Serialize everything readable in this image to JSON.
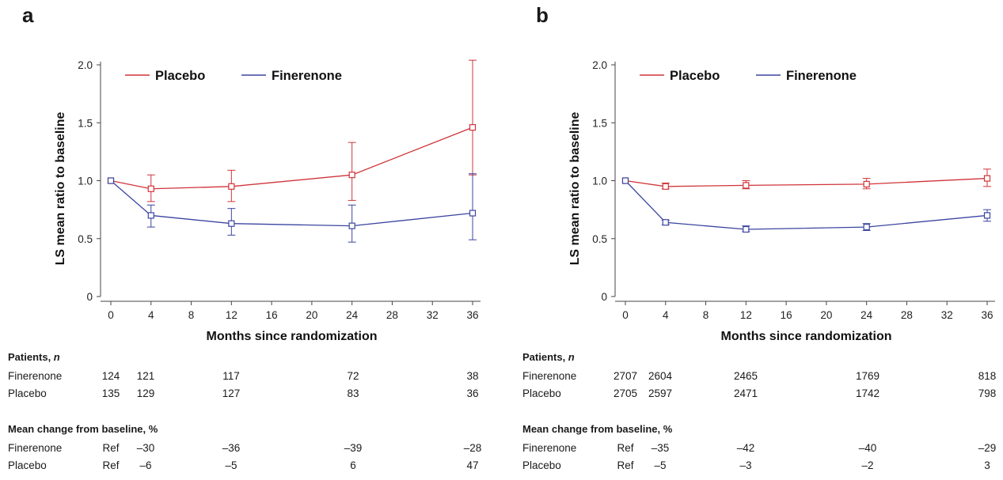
{
  "panels": [
    {
      "letter": "a",
      "chart_data": {
        "type": "line",
        "xlabel": "Months since randomization",
        "ylabel": "LS mean ratio to baseline",
        "xlim": [
          0,
          36
        ],
        "ylim": [
          0,
          2.0
        ],
        "xticks": [
          0,
          4,
          8,
          12,
          16,
          20,
          24,
          28,
          32,
          36
        ],
        "yticks": [
          0,
          0.5,
          1.0,
          1.5,
          2.0
        ],
        "ytick_labels": [
          "0",
          "0.5",
          "1.0",
          "1.5",
          "2.0"
        ],
        "legend_position": "top-left",
        "grid": false,
        "series": [
          {
            "name": "Placebo",
            "color": "#d0343a",
            "x": [
              0,
              4,
              12,
              24,
              36
            ],
            "y": [
              1.0,
              0.93,
              0.95,
              1.05,
              1.46
            ],
            "err_low": [
              1.0,
              0.82,
              0.82,
              0.83,
              1.05
            ],
            "err_high": [
              1.0,
              1.05,
              1.09,
              1.33,
              2.04
            ]
          },
          {
            "name": "Finerenone",
            "color": "#3b45a0",
            "x": [
              0,
              4,
              12,
              24,
              36
            ],
            "y": [
              1.0,
              0.7,
              0.63,
              0.61,
              0.72
            ],
            "err_low": [
              1.0,
              0.6,
              0.53,
              0.47,
              0.49
            ],
            "err_high": [
              1.0,
              0.79,
              0.76,
              0.79,
              1.06
            ]
          }
        ]
      },
      "patients": {
        "title": "Patients, n",
        "rows": [
          {
            "label": "Finerenone",
            "values": [
              "124",
              "121",
              "117",
              "72",
              "38"
            ]
          },
          {
            "label": "Placebo",
            "values": [
              "135",
              "129",
              "127",
              "83",
              "36"
            ]
          }
        ]
      },
      "mean_change": {
        "title": "Mean change from baseline, %",
        "rows": [
          {
            "label": "Finerenone",
            "values": [
              "Ref",
              "–30",
              "–36",
              "–39",
              "–28"
            ]
          },
          {
            "label": "Placebo",
            "values": [
              "Ref",
              "–6",
              "–5",
              "6",
              "47"
            ]
          }
        ]
      }
    },
    {
      "letter": "b",
      "chart_data": {
        "type": "line",
        "xlabel": "Months since randomization",
        "ylabel": "LS mean ratio to baseline",
        "xlim": [
          0,
          36
        ],
        "ylim": [
          0,
          2.0
        ],
        "xticks": [
          0,
          4,
          8,
          12,
          16,
          20,
          24,
          28,
          32,
          36
        ],
        "yticks": [
          0,
          0.5,
          1.0,
          1.5,
          2.0
        ],
        "ytick_labels": [
          "0",
          "0.5",
          "1.0",
          "1.5",
          "2.0"
        ],
        "legend_position": "top-left",
        "grid": false,
        "series": [
          {
            "name": "Placebo",
            "color": "#d0343a",
            "x": [
              0,
              4,
              12,
              24,
              36
            ],
            "y": [
              1.0,
              0.95,
              0.96,
              0.97,
              1.02
            ],
            "err_low": [
              1.0,
              0.93,
              0.93,
              0.93,
              0.95
            ],
            "err_high": [
              1.0,
              0.98,
              1.0,
              1.02,
              1.1
            ]
          },
          {
            "name": "Finerenone",
            "color": "#3b45a0",
            "x": [
              0,
              4,
              12,
              24,
              36
            ],
            "y": [
              1.0,
              0.64,
              0.58,
              0.6,
              0.7
            ],
            "err_low": [
              1.0,
              0.62,
              0.56,
              0.57,
              0.65
            ],
            "err_high": [
              1.0,
              0.66,
              0.61,
              0.63,
              0.75
            ]
          }
        ]
      },
      "patients": {
        "title": "Patients, n",
        "rows": [
          {
            "label": "Finerenone",
            "values": [
              "2707",
              "2604",
              "2465",
              "1769",
              "818"
            ]
          },
          {
            "label": "Placebo",
            "values": [
              "2705",
              "2597",
              "2471",
              "1742",
              "798"
            ]
          }
        ]
      },
      "mean_change": {
        "title": "Mean change from baseline, %",
        "rows": [
          {
            "label": "Finerenone",
            "values": [
              "Ref",
              "–35",
              "–42",
              "–40",
              "–29"
            ]
          },
          {
            "label": "Placebo",
            "values": [
              "Ref",
              "–5",
              "–3",
              "–2",
              "3"
            ]
          }
        ]
      }
    }
  ]
}
